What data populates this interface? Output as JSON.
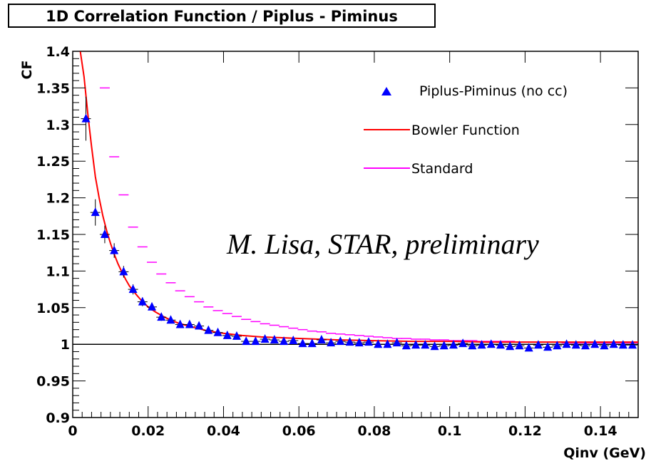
{
  "chart_data": {
    "type": "scatter",
    "title": "1D Correlation Function / Piplus - Piminus",
    "xlabel": "Qinv (GeV)",
    "ylabel": "CF",
    "xlim": [
      0,
      0.15
    ],
    "ylim": [
      0.9,
      1.4
    ],
    "grid": false,
    "legend_position": "top-right",
    "x_ticks": [
      "0",
      "0.02",
      "0.04",
      "0.06",
      "0.08",
      "0.1",
      "0.12",
      "0.14"
    ],
    "y_ticks": [
      "0.9",
      "0.95",
      "1",
      "1.05",
      "1.1",
      "1.15",
      "1.2",
      "1.25",
      "1.3",
      "1.35",
      "1.4"
    ],
    "annotation": "M. Lisa, STAR, preliminary",
    "reference_line_y": 1.0,
    "series": [
      {
        "name": "Piplus-Piminus (no cc)",
        "kind": "markers",
        "color": "#0000ff",
        "x": [
          0.0035,
          0.006,
          0.0085,
          0.011,
          0.0135,
          0.016,
          0.0185,
          0.021,
          0.0235,
          0.026,
          0.0285,
          0.031,
          0.0335,
          0.036,
          0.0385,
          0.041,
          0.0435,
          0.046,
          0.0485,
          0.051,
          0.0535,
          0.056,
          0.0585,
          0.061,
          0.0635,
          0.066,
          0.0685,
          0.071,
          0.0735,
          0.076,
          0.0785,
          0.081,
          0.0835,
          0.086,
          0.0885,
          0.091,
          0.0935,
          0.096,
          0.0985,
          0.101,
          0.1035,
          0.106,
          0.1085,
          0.111,
          0.1135,
          0.116,
          0.1185,
          0.121,
          0.1235,
          0.126,
          0.1285,
          0.131,
          0.1335,
          0.136,
          0.1385,
          0.141,
          0.1435,
          0.146,
          0.1485
        ],
        "y": [
          1.308,
          1.18,
          1.15,
          1.128,
          1.099,
          1.075,
          1.058,
          1.051,
          1.037,
          1.033,
          1.027,
          1.027,
          1.025,
          1.019,
          1.016,
          1.012,
          1.011,
          1.004,
          1.004,
          1.007,
          1.006,
          1.004,
          1.005,
          1.001,
          1.001,
          1.006,
          1.002,
          1.004,
          1.003,
          1.002,
          1.003,
          1.0,
          1.0,
          1.002,
          0.998,
          0.999,
          0.999,
          0.997,
          0.998,
          0.999,
          1.001,
          0.998,
          0.999,
          1.0,
          0.999,
          0.997,
          0.998,
          0.995,
          0.999,
          0.996,
          0.998,
          1.0,
          0.999,
          0.998,
          1.0,
          0.998,
          1.0,
          0.999,
          0.999
        ],
        "errors": [
          0.03,
          0.018,
          0.012,
          0.01,
          0.008,
          0.007,
          0.006,
          0.005,
          0.005,
          0.004,
          0.004,
          0.004,
          0.004,
          0.003,
          0.003,
          0.003,
          0.003,
          0.003,
          0.003,
          0.003,
          0.003,
          0.003,
          0.003,
          0.003,
          0.003,
          0.003,
          0.003,
          0.003,
          0.003,
          0.003,
          0.003,
          0.003,
          0.003,
          0.003,
          0.003,
          0.003,
          0.003,
          0.003,
          0.003,
          0.003,
          0.003,
          0.003,
          0.003,
          0.003,
          0.003,
          0.003,
          0.003,
          0.003,
          0.003,
          0.003,
          0.003,
          0.003,
          0.003,
          0.003,
          0.003,
          0.003,
          0.003,
          0.003,
          0.003
        ]
      },
      {
        "name": "Bowler Function",
        "kind": "line",
        "color": "#ff0000",
        "x": [
          0.002,
          0.003,
          0.004,
          0.005,
          0.006,
          0.007,
          0.008,
          0.009,
          0.01,
          0.011,
          0.012,
          0.013,
          0.014,
          0.015,
          0.016,
          0.018,
          0.02,
          0.022,
          0.024,
          0.026,
          0.028,
          0.03,
          0.033,
          0.036,
          0.04,
          0.045,
          0.05,
          0.055,
          0.06,
          0.07,
          0.08,
          0.09,
          0.1,
          0.11,
          0.12,
          0.13,
          0.14,
          0.15
        ],
        "y": [
          1.4,
          1.365,
          1.315,
          1.27,
          1.229,
          1.2,
          1.175,
          1.155,
          1.138,
          1.123,
          1.11,
          1.099,
          1.089,
          1.08,
          1.073,
          1.061,
          1.051,
          1.044,
          1.038,
          1.033,
          1.029,
          1.026,
          1.022,
          1.018,
          1.015,
          1.012,
          1.01,
          1.009,
          1.008,
          1.006,
          1.005,
          1.004,
          1.004,
          1.003,
          1.003,
          1.003,
          1.003,
          1.003
        ]
      },
      {
        "name": "Standard",
        "kind": "segments",
        "color": "#ff00ff",
        "x": [
          0.0085,
          0.011,
          0.0135,
          0.016,
          0.0185,
          0.021,
          0.0235,
          0.026,
          0.0285,
          0.031,
          0.0335,
          0.036,
          0.0385,
          0.041,
          0.0435,
          0.046,
          0.0485,
          0.051,
          0.0535,
          0.056,
          0.0585,
          0.061,
          0.0635,
          0.066,
          0.0685,
          0.071,
          0.0735,
          0.076,
          0.0785,
          0.081,
          0.0835,
          0.086,
          0.0885,
          0.091,
          0.0935,
          0.096,
          0.0985,
          0.101,
          0.1035,
          0.106,
          0.1085,
          0.111,
          0.1135,
          0.116,
          0.1185,
          0.121,
          0.1235,
          0.126,
          0.1285,
          0.131,
          0.1335,
          0.136,
          0.1385,
          0.141,
          0.1435,
          0.146,
          0.1485
        ],
        "y": [
          1.35,
          1.256,
          1.204,
          1.16,
          1.133,
          1.112,
          1.096,
          1.084,
          1.073,
          1.065,
          1.058,
          1.051,
          1.046,
          1.042,
          1.038,
          1.034,
          1.031,
          1.028,
          1.026,
          1.024,
          1.022,
          1.02,
          1.018,
          1.017,
          1.015,
          1.014,
          1.013,
          1.012,
          1.011,
          1.01,
          1.009,
          1.008,
          1.008,
          1.007,
          1.007,
          1.006,
          1.006,
          1.005,
          1.005,
          1.005,
          1.004,
          1.004,
          1.004,
          1.004,
          1.003,
          1.003,
          1.003,
          1.003,
          1.003,
          1.002,
          1.002,
          1.002,
          1.002,
          1.002,
          1.002,
          1.002,
          1.002
        ]
      }
    ]
  }
}
